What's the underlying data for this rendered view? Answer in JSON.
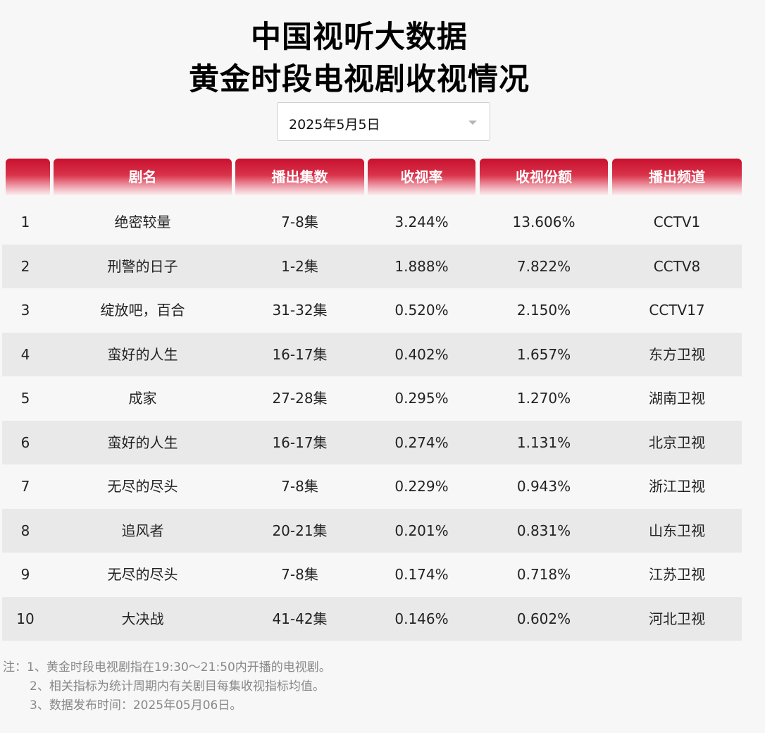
{
  "title": {
    "line1": "中国视听大数据",
    "line2": "黄金时段电视剧收视情况"
  },
  "date_select": {
    "value": "2025年5月5日"
  },
  "table": {
    "headers": [
      "",
      "剧名",
      "播出集数",
      "收视率",
      "收视份额",
      "播出频道"
    ],
    "rows": [
      {
        "rank": "1",
        "name": "绝密较量",
        "episodes": "7-8集",
        "rating": "3.244%",
        "share": "13.606%",
        "channel": "CCTV1"
      },
      {
        "rank": "2",
        "name": "刑警的日子",
        "episodes": "1-2集",
        "rating": "1.888%",
        "share": "7.822%",
        "channel": "CCTV8"
      },
      {
        "rank": "3",
        "name": "绽放吧，百合",
        "episodes": "31-32集",
        "rating": "0.520%",
        "share": "2.150%",
        "channel": "CCTV17"
      },
      {
        "rank": "4",
        "name": "蛮好的人生",
        "episodes": "16-17集",
        "rating": "0.402%",
        "share": "1.657%",
        "channel": "东方卫视"
      },
      {
        "rank": "5",
        "name": "成家",
        "episodes": "27-28集",
        "rating": "0.295%",
        "share": "1.270%",
        "channel": "湖南卫视"
      },
      {
        "rank": "6",
        "name": "蛮好的人生",
        "episodes": "16-17集",
        "rating": "0.274%",
        "share": "1.131%",
        "channel": "北京卫视"
      },
      {
        "rank": "7",
        "name": "无尽的尽头",
        "episodes": "7-8集",
        "rating": "0.229%",
        "share": "0.943%",
        "channel": "浙江卫视"
      },
      {
        "rank": "8",
        "name": "追风者",
        "episodes": "20-21集",
        "rating": "0.201%",
        "share": "0.831%",
        "channel": "山东卫视"
      },
      {
        "rank": "9",
        "name": "无尽的尽头",
        "episodes": "7-8集",
        "rating": "0.174%",
        "share": "0.718%",
        "channel": "江苏卫视"
      },
      {
        "rank": "10",
        "name": "大决战",
        "episodes": "41-42集",
        "rating": "0.146%",
        "share": "0.602%",
        "channel": "河北卫视"
      }
    ]
  },
  "notes": [
    "注：1、黄金时段电视剧指在19:30～21:50内开播的电视剧。",
    "2、相关指标为统计周期内有关剧目每集收视指标均值。",
    "3、数据发布时间：2025年05月06日。"
  ],
  "colors": {
    "header_red": "#c8102e",
    "row_alt": "#e9e9e9",
    "background": "#f7f7f7"
  }
}
